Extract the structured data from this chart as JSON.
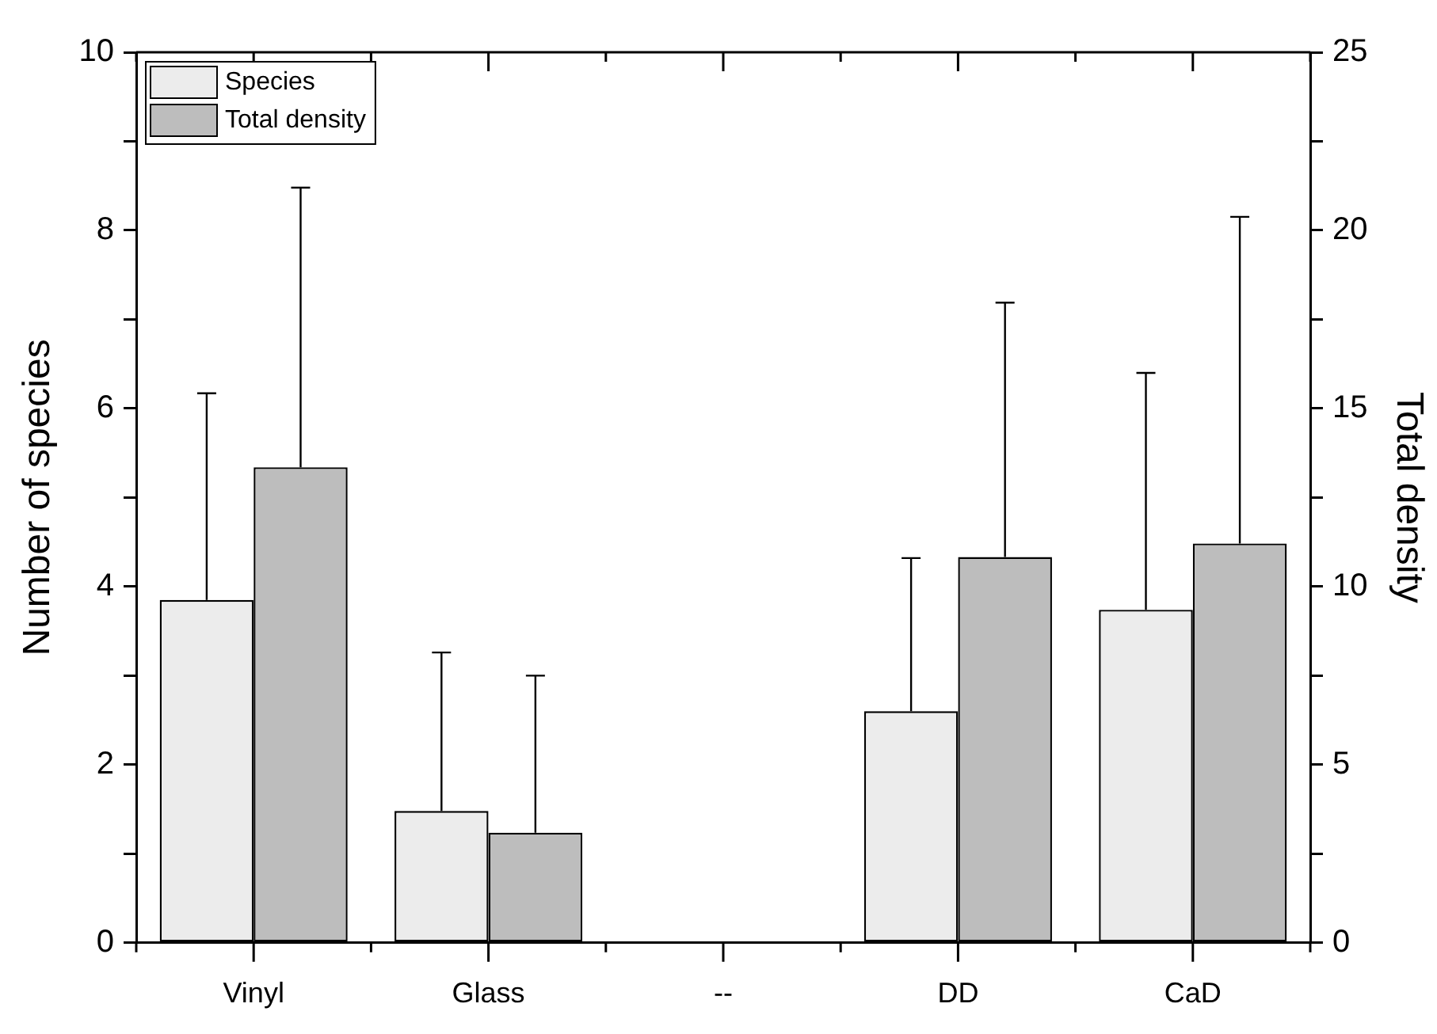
{
  "chart_data": {
    "type": "bar",
    "ylabel": "Number of species",
    "y2label": "Total density",
    "categories": [
      "Vinyl",
      "Glass",
      "--",
      "DD",
      "CaD"
    ],
    "series": [
      {
        "name": "Species",
        "color": "#ececec",
        "values": [
          3.85,
          1.48,
          null,
          2.6,
          3.74
        ],
        "errors": [
          [
            3.85,
            6.17
          ],
          [
            1.48,
            3.26
          ],
          null,
          [
            2.6,
            4.32
          ],
          [
            3.74,
            6.4
          ]
        ]
      },
      {
        "name": "Total density",
        "color": "#bdbdbd",
        "axis": "y2",
        "values": [
          13.35,
          3.09,
          null,
          10.83,
          11.21
        ],
        "errors": [
          [
            13.35,
            21.2
          ],
          [
            3.09,
            7.5
          ],
          null,
          [
            10.83,
            17.97
          ],
          [
            11.21,
            20.38
          ]
        ]
      }
    ],
    "ylim": [
      0,
      10
    ],
    "yticks": [
      0,
      {
        "value": 1,
        "label": null
      },
      2,
      {
        "value": 3,
        "label": null
      },
      4,
      {
        "value": 5,
        "label": null
      },
      6,
      {
        "value": 7,
        "label": null
      },
      8,
      {
        "value": 9,
        "label": null
      },
      10
    ],
    "y2lim": [
      0,
      25
    ],
    "y2ticks": [
      0,
      {
        "value": 2.5,
        "label": null
      },
      5,
      {
        "value": 7.5,
        "label": null
      },
      10,
      {
        "value": 12.5,
        "label": null
      },
      15,
      {
        "value": 17.5,
        "label": null
      },
      20,
      {
        "value": 22.5,
        "label": null
      },
      25
    ],
    "grid": false,
    "legend": "top left"
  }
}
